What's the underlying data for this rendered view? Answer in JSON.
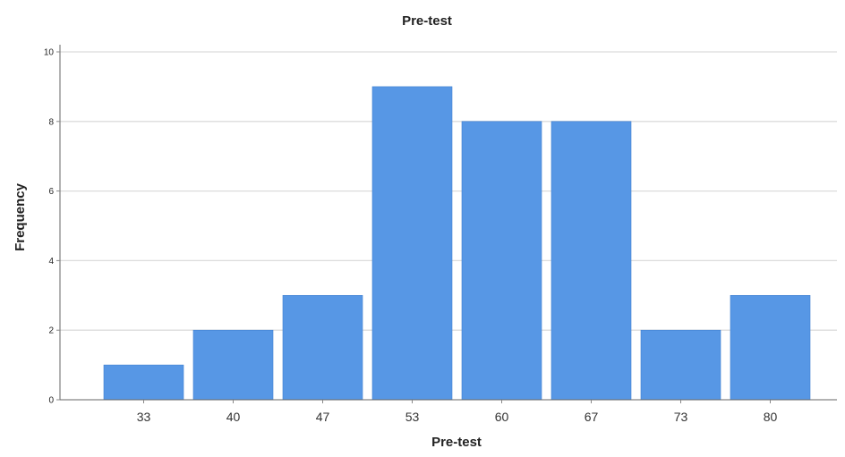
{
  "chart_data": {
    "type": "bar",
    "title": "Pre-test",
    "xlabel": "Pre-test",
    "ylabel": "Frequency",
    "categories": [
      "33",
      "40",
      "47",
      "53",
      "60",
      "67",
      "73",
      "80"
    ],
    "values": [
      1,
      2,
      3,
      9,
      8,
      8,
      2,
      3
    ],
    "ylim": [
      0,
      10
    ],
    "yticks": [
      0,
      2,
      4,
      6,
      8,
      10
    ],
    "grid": true,
    "bar_color": "#5797e5"
  }
}
